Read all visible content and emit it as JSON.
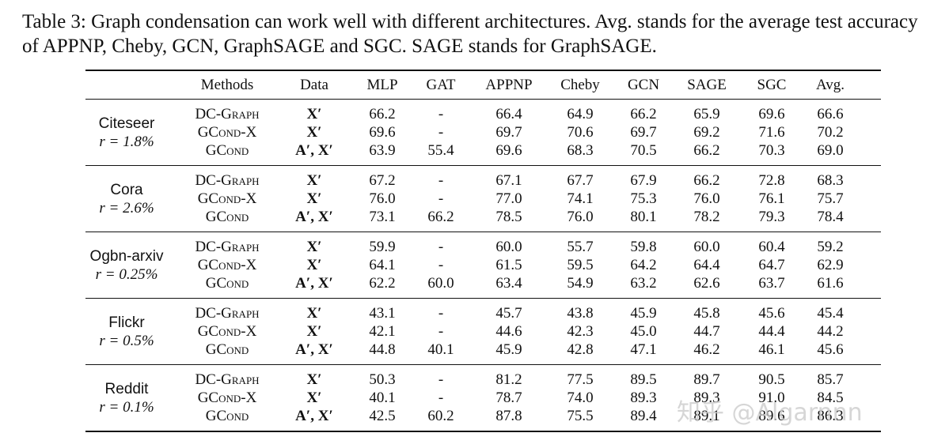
{
  "caption": "Table 3: Graph condensation can work well with different architectures. Avg. stands for the average test accuracy of APPNP, Cheby, GCN, GraphSAGE and SGC. SAGE stands for GraphSAGE.",
  "table": {
    "header": [
      "Methods",
      "Data",
      "MLP",
      "GAT",
      "APPNP",
      "Cheby",
      "GCN",
      "SAGE",
      "SGC",
      "Avg."
    ],
    "groups": [
      {
        "dataset": "Citeseer",
        "ratio": "r = 1.8%",
        "rows": [
          [
            "DC-Graph",
            "X′",
            "66.2",
            "-",
            "66.4",
            "64.9",
            "66.2",
            "65.9",
            "69.6",
            "66.6"
          ],
          [
            "GCond-X",
            "X′",
            "69.6",
            "-",
            "69.7",
            "70.6",
            "69.7",
            "69.2",
            "71.6",
            "70.2"
          ],
          [
            "GCond",
            "A′, X′",
            "63.9",
            "55.4",
            "69.6",
            "68.3",
            "70.5",
            "66.2",
            "70.3",
            "69.0"
          ]
        ]
      },
      {
        "dataset": "Cora",
        "ratio": "r = 2.6%",
        "rows": [
          [
            "DC-Graph",
            "X′",
            "67.2",
            "-",
            "67.1",
            "67.7",
            "67.9",
            "66.2",
            "72.8",
            "68.3"
          ],
          [
            "GCond-X",
            "X′",
            "76.0",
            "-",
            "77.0",
            "74.1",
            "75.3",
            "76.0",
            "76.1",
            "75.7"
          ],
          [
            "GCond",
            "A′, X′",
            "73.1",
            "66.2",
            "78.5",
            "76.0",
            "80.1",
            "78.2",
            "79.3",
            "78.4"
          ]
        ]
      },
      {
        "dataset": "Ogbn-arxiv",
        "ratio": "r = 0.25%",
        "rows": [
          [
            "DC-Graph",
            "X′",
            "59.9",
            "-",
            "60.0",
            "55.7",
            "59.8",
            "60.0",
            "60.4",
            "59.2"
          ],
          [
            "GCond-X",
            "X′",
            "64.1",
            "-",
            "61.5",
            "59.5",
            "64.2",
            "64.4",
            "64.7",
            "62.9"
          ],
          [
            "GCond",
            "A′, X′",
            "62.2",
            "60.0",
            "63.4",
            "54.9",
            "63.2",
            "62.6",
            "63.7",
            "61.6"
          ]
        ]
      },
      {
        "dataset": "Flickr",
        "ratio": "r = 0.5%",
        "rows": [
          [
            "DC-Graph",
            "X′",
            "43.1",
            "-",
            "45.7",
            "43.8",
            "45.9",
            "45.8",
            "45.6",
            "45.4"
          ],
          [
            "GCond-X",
            "X′",
            "42.1",
            "-",
            "44.6",
            "42.3",
            "45.0",
            "44.7",
            "44.4",
            "44.2"
          ],
          [
            "GCond",
            "A′, X′",
            "44.8",
            "40.1",
            "45.9",
            "42.8",
            "47.1",
            "46.2",
            "46.1",
            "45.6"
          ]
        ]
      },
      {
        "dataset": "Reddit",
        "ratio": "r = 0.1%",
        "rows": [
          [
            "DC-Graph",
            "X′",
            "50.3",
            "-",
            "81.2",
            "77.5",
            "89.5",
            "89.7",
            "90.5",
            "85.7"
          ],
          [
            "GCond-X",
            "X′",
            "40.1",
            "-",
            "78.7",
            "74.0",
            "89.3",
            "89.3",
            "91.0",
            "84.5"
          ],
          [
            "GCond",
            "A′, X′",
            "42.5",
            "60.2",
            "87.8",
            "75.5",
            "89.4",
            "89.1",
            "89.6",
            "86.3"
          ]
        ]
      }
    ]
  },
  "watermark": "知乎 @Algarnnn"
}
